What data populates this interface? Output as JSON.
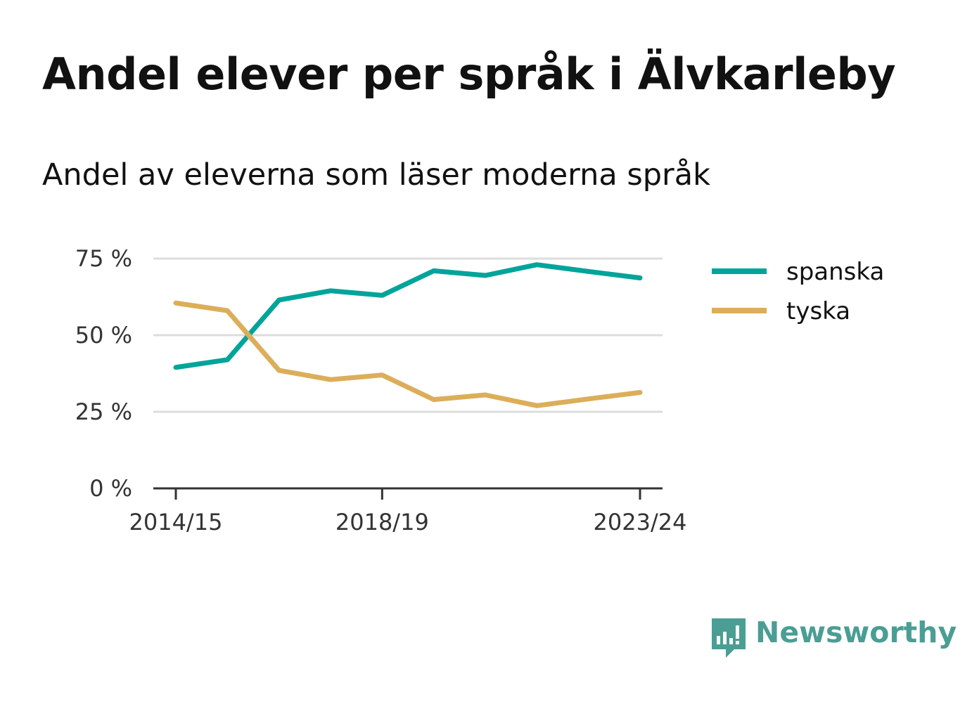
{
  "title": "Andel elever per språk i Älvkarleby",
  "subtitle": "Andel av eleverna som läser moderna språk",
  "brand": {
    "name": "Newsworthy",
    "color": "#4a9e94"
  },
  "chart_data": {
    "type": "line",
    "x": [
      "2014/15",
      "2015/16",
      "2016/17",
      "2017/18",
      "2018/19",
      "2019/20",
      "2020/21",
      "2021/22",
      "2022/23",
      "2023/24"
    ],
    "x_tick_labels": [
      "2014/15",
      "2018/19",
      "2023/24"
    ],
    "y_ticks": [
      0,
      25,
      50,
      75
    ],
    "y_tick_labels": [
      "0 %",
      "25 %",
      "50 %",
      "75 %"
    ],
    "ylim": [
      0,
      75
    ],
    "grid": true,
    "legend_position": "right",
    "series": [
      {
        "name": "spanska",
        "color": "#00a49a",
        "values": [
          39.5,
          42,
          61.5,
          64.5,
          63,
          71,
          69.5,
          73,
          70.8,
          68.7
        ]
      },
      {
        "name": "tyska",
        "color": "#dcae5a",
        "values": [
          60.5,
          58,
          38.5,
          35.5,
          37,
          29,
          30.5,
          27,
          29.2,
          31.3
        ]
      }
    ]
  }
}
